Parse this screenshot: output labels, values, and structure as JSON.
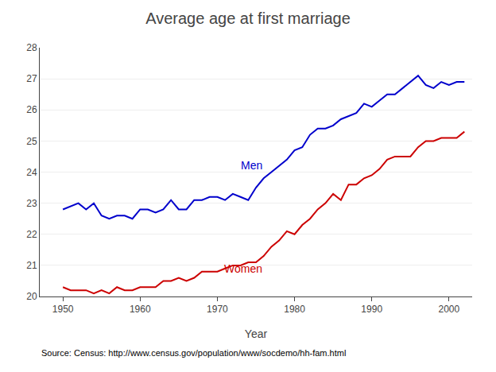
{
  "chart_data": {
    "type": "line",
    "title": "Average age at first marriage",
    "x_label": "Year",
    "annotations": [
      "Source: Census: http://www.census.gov/population/www/socdemo/hh-fam.html"
    ],
    "x": [
      1950,
      1951,
      1952,
      1953,
      1954,
      1955,
      1956,
      1957,
      1958,
      1959,
      1960,
      1961,
      1962,
      1963,
      1964,
      1965,
      1966,
      1967,
      1968,
      1969,
      1970,
      1971,
      1972,
      1973,
      1974,
      1975,
      1976,
      1977,
      1978,
      1979,
      1980,
      1981,
      1982,
      1983,
      1984,
      1985,
      1986,
      1987,
      1988,
      1989,
      1990,
      1991,
      1992,
      1993,
      1994,
      1995,
      1996,
      1997,
      1998,
      1999,
      2000,
      2001,
      2002
    ],
    "series": [
      {
        "name": "Men",
        "color": "#0000CC",
        "values": [
          22.8,
          22.9,
          23.0,
          22.8,
          23.0,
          22.6,
          22.5,
          22.6,
          22.6,
          22.5,
          22.8,
          22.8,
          22.7,
          22.8,
          23.1,
          22.8,
          22.8,
          23.1,
          23.1,
          23.2,
          23.2,
          23.1,
          23.3,
          23.2,
          23.1,
          23.5,
          23.8,
          24.0,
          24.2,
          24.4,
          24.7,
          24.8,
          25.2,
          25.4,
          25.4,
          25.5,
          25.7,
          25.8,
          25.9,
          26.2,
          26.1,
          26.3,
          26.5,
          26.5,
          26.7,
          26.9,
          27.1,
          26.8,
          26.7,
          26.9,
          26.8,
          26.9,
          26.9
        ]
      },
      {
        "name": "Women",
        "color": "#CC0000",
        "values": [
          20.3,
          20.2,
          20.2,
          20.2,
          20.1,
          20.2,
          20.1,
          20.3,
          20.2,
          20.2,
          20.3,
          20.3,
          20.3,
          20.5,
          20.5,
          20.6,
          20.5,
          20.6,
          20.8,
          20.8,
          20.8,
          20.9,
          21.0,
          21.0,
          21.1,
          21.1,
          21.3,
          21.6,
          21.8,
          22.1,
          22.0,
          22.3,
          22.5,
          22.8,
          23.0,
          23.3,
          23.1,
          23.6,
          23.6,
          23.8,
          23.9,
          24.1,
          24.4,
          24.5,
          24.5,
          24.5,
          24.8,
          25.0,
          25.0,
          25.1,
          25.1,
          25.1,
          25.3
        ]
      }
    ],
    "xlim": [
      1947,
      2003
    ],
    "xticks": [
      1950,
      1960,
      1970,
      1980,
      1990,
      2000
    ],
    "ylim": [
      20,
      28
    ],
    "yticks": [
      20,
      21,
      22,
      23,
      24,
      25,
      26,
      27,
      28
    ],
    "grid": true
  }
}
